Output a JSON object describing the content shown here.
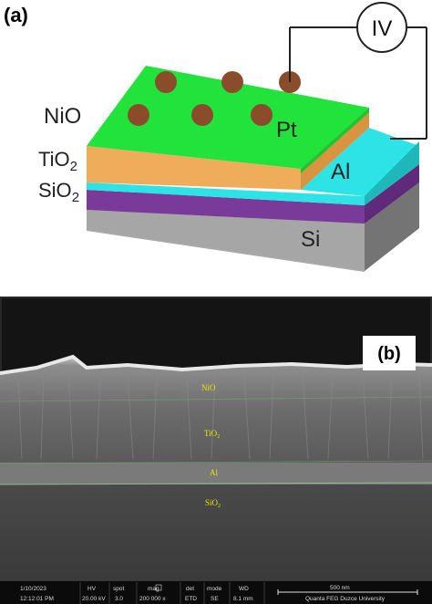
{
  "panel_a": {
    "label": "(a)",
    "meter": "IV",
    "layers": {
      "nio": "NiO",
      "tio2_base": "TiO",
      "tio2_sub": "2",
      "sio2_base": "SiO",
      "sio2_sub": "2",
      "al": "Al",
      "si": "Si",
      "pt": "Pt"
    },
    "colors": {
      "nio": "#22e23c",
      "tio2": "#efad5c",
      "al": "#2de3e6",
      "sio2": "#7a3a9a",
      "si": "#a6a6a6",
      "pt_dots": "#8b4c2c"
    }
  },
  "panel_b": {
    "label": "(b)",
    "layer_labels": {
      "nio": "NiO",
      "tio2_base": "TiO",
      "tio2_sub": "2",
      "al": "Al",
      "sio2_base": "SiO",
      "sio2_sub": "2"
    },
    "info_bar": {
      "date": "1/10/2023",
      "time": "12:12:01 PM",
      "hv_label": "HV",
      "hv_value": "20.00 kV",
      "spot_label": "spot",
      "spot_value": "3.0",
      "mag_label": "mag",
      "mag_value": "200 000 x",
      "det_label": "det",
      "det_value": "ETD",
      "mode_label": "mode",
      "mode_value": "SE",
      "wd_label": "WD",
      "wd_value": "8.1 mm",
      "scale": "500 nm",
      "instrument": "Quanta FEG Duzce University"
    }
  }
}
